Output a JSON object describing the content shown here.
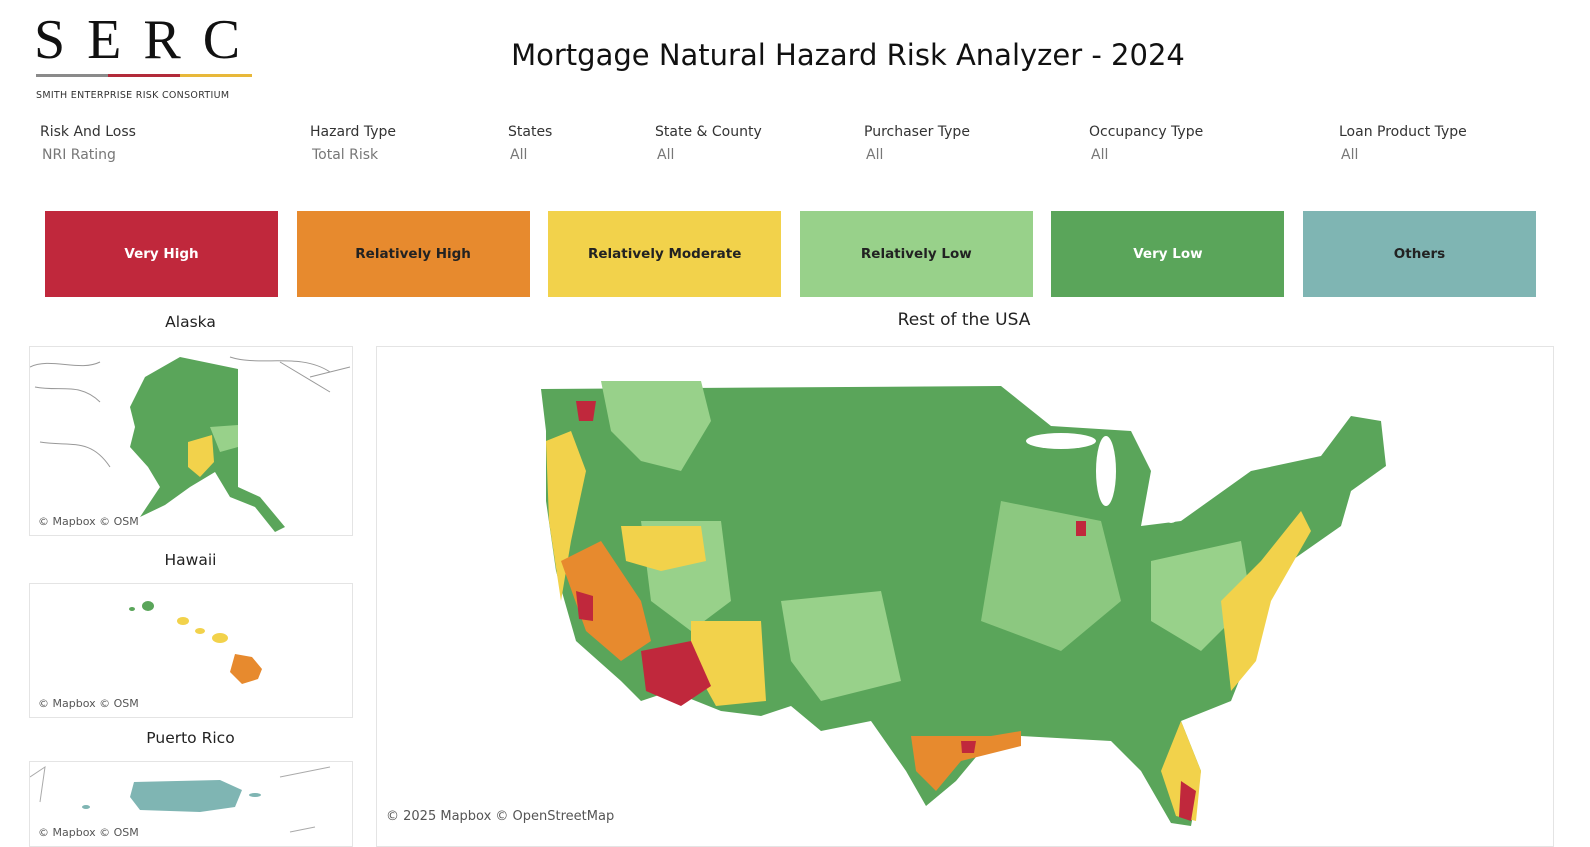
{
  "header": {
    "logo": "S E R C",
    "tagline": "SMITH ENTERPRISE RISK CONSORTIUM",
    "title": "Mortgage Natural Hazard Risk Analyzer - 2024"
  },
  "filters": [
    {
      "label": "Risk And Loss",
      "value": "NRI Rating"
    },
    {
      "label": "Hazard Type",
      "value": "Total Risk"
    },
    {
      "label": "States",
      "value": "All"
    },
    {
      "label": "State & County",
      "value": "All"
    },
    {
      "label": "Purchaser Type",
      "value": "All"
    },
    {
      "label": "Occupancy Type",
      "value": "All"
    },
    {
      "label": "Loan Product Type",
      "value": "All"
    }
  ],
  "legend": [
    "Very High",
    "Relatively High",
    "Relatively Moderate",
    "Relatively Low",
    "Very Low",
    "Others"
  ],
  "maps": [
    {
      "title": "Alaska",
      "attribution": "© Mapbox © OSM"
    },
    {
      "title": "Hawaii",
      "attribution": "© Mapbox © OSM"
    },
    {
      "title": "Puerto Rico",
      "attribution": "© Mapbox © OSM"
    },
    {
      "title": "Rest of the USA",
      "attribution": "© 2025 Mapbox © OpenStreetMap"
    }
  ]
}
